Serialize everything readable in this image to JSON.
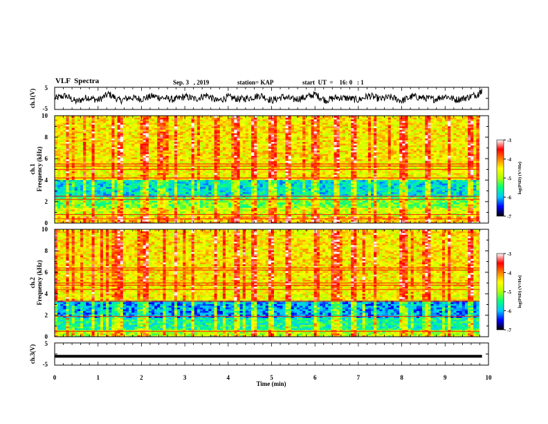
{
  "header": {
    "title": "VLF  Spectra",
    "date": "Sep. 3   , 2019",
    "station": "station= KAP",
    "start": "start  UT  =    16: 0   : 1"
  },
  "chart_data": [
    {
      "type": "line",
      "panel": "ch1-waveform",
      "ylabel": "ch.1(V)",
      "ylim": [
        -5,
        5
      ],
      "yticks": [
        "5",
        "-5"
      ],
      "xlim": [
        0,
        10
      ],
      "series": [
        {
          "x": [
            0,
            0.25,
            0.5,
            0.75,
            1,
            1.25,
            1.5,
            1.75,
            2,
            2.25,
            2.5,
            2.75,
            3,
            3.25,
            3.5,
            3.75,
            4,
            4.25,
            4.5,
            4.75,
            5,
            5.25,
            5.5,
            5.75,
            6,
            6.25,
            6.5,
            6.75,
            7,
            7.25,
            7.5,
            7.75,
            8,
            8.25,
            8.5,
            8.75,
            9,
            9.25,
            9.5,
            9.75,
            9.85
          ],
          "values": [
            0,
            1.2,
            -1.5,
            0.5,
            -0.8,
            2.0,
            -1.0,
            0.4,
            -0.3,
            1.0,
            0.2,
            -0.6,
            0.8,
            -0.3,
            1.5,
            -1.2,
            0.6,
            -0.4,
            0.2,
            1.4,
            -1.0,
            0.7,
            -0.5,
            0.3,
            1.8,
            -0.9,
            0.4,
            0.1,
            -0.7,
            1.2,
            -0.3,
            0.5,
            -1.1,
            0.9,
            0.2,
            -0.4,
            1.1,
            -0.6,
            0.3,
            1.9,
            3.5
          ]
        }
      ]
    },
    {
      "type": "heatmap",
      "panel": "ch1-spectrogram",
      "ylabel": "ch.1",
      "ylabel2": "Frequency  (kHz)",
      "ylim": [
        0,
        10
      ],
      "yticks": [
        "0",
        "2",
        "4",
        "6",
        "8",
        "10"
      ],
      "xlim": [
        0,
        10
      ],
      "data_end_x": 9.85,
      "bands_khz": [
        {
          "lo": 0,
          "hi": 0.6,
          "level": -4.3
        },
        {
          "lo": 0.6,
          "hi": 1.5,
          "level": -4.8
        },
        {
          "lo": 1.5,
          "hi": 2.5,
          "level": -5.2
        },
        {
          "lo": 2.5,
          "hi": 4.0,
          "level": -5.8
        },
        {
          "lo": 4.0,
          "hi": 5.8,
          "level": -4.6
        },
        {
          "lo": 5.8,
          "hi": 10,
          "level": -4.5
        }
      ],
      "lines_khz": [
        0.4,
        0.8,
        2.2,
        2.5,
        4.2,
        5.0,
        5.3,
        5.5
      ],
      "spike_times_min": [
        0.3,
        0.9,
        1.5,
        2.1,
        2.8,
        3.2,
        3.7,
        4.2,
        4.6,
        5.0,
        5.4,
        6.0,
        6.5,
        6.9,
        7.4,
        8.0,
        8.6,
        9.1,
        9.6
      ]
    },
    {
      "type": "heatmap",
      "panel": "ch2-spectrogram",
      "ylabel": "ch.2",
      "ylabel2": "Frequency  (kHz)",
      "ylim": [
        0,
        10
      ],
      "yticks": [
        "0",
        "2",
        "4",
        "6",
        "8",
        "10"
      ],
      "xlim": [
        0,
        10
      ],
      "data_end_x": 9.85,
      "bands_khz": [
        {
          "lo": 0,
          "hi": 0.6,
          "level": -4.9
        },
        {
          "lo": 0.6,
          "hi": 1.8,
          "level": -5.6
        },
        {
          "lo": 1.8,
          "hi": 3.4,
          "level": -6.1
        },
        {
          "lo": 3.4,
          "hi": 4.6,
          "level": -4.6
        },
        {
          "lo": 4.6,
          "hi": 10,
          "level": -4.5
        }
      ],
      "lines_khz": [
        0.5,
        1.9,
        3.3,
        4.4,
        4.8,
        5.0,
        6.2,
        6.4
      ],
      "spike_times_min": [
        0.3,
        0.9,
        1.5,
        2.1,
        2.8,
        3.2,
        3.7,
        4.2,
        4.6,
        5.0,
        5.4,
        6.0,
        6.5,
        6.9,
        7.4,
        8.0,
        8.6,
        9.1,
        9.6
      ]
    },
    {
      "type": "line",
      "panel": "ch3-waveform",
      "ylabel": "ch.3(V)",
      "ylim": [
        -5,
        5
      ],
      "yticks": [
        "5",
        "-5"
      ],
      "xlim": [
        0,
        10
      ],
      "xticks": [
        "0",
        "1",
        "2",
        "3",
        "4",
        "5",
        "6",
        "7",
        "8",
        "9",
        "10"
      ],
      "xlabel": "Time  (min)",
      "series": [
        {
          "x": [
            0,
            9.85
          ],
          "values": [
            -1.0,
            -1.0
          ]
        }
      ]
    }
  ],
  "colorbars": [
    {
      "panel": "ch1",
      "label": "log(PSD) (V²/Hz)",
      "ticks": [
        "-3",
        "-4",
        "-5",
        "-6",
        "-7"
      ],
      "range": [
        -7,
        -3
      ],
      "colors": [
        "#000000",
        "#0000ff",
        "#00c8ff",
        "#00ff80",
        "#b0ff00",
        "#ffff00",
        "#ff8000",
        "#ff0000",
        "#ffffff"
      ]
    },
    {
      "panel": "ch2",
      "label": "log(PSD) (V²/Hz)",
      "ticks": [
        "-3",
        "-4",
        "-5",
        "-6",
        "-7"
      ],
      "range": [
        -7,
        -3
      ],
      "colors": [
        "#000000",
        "#0000ff",
        "#00c8ff",
        "#00ff80",
        "#b0ff00",
        "#ffff00",
        "#ff8000",
        "#ff0000",
        "#ffffff"
      ]
    }
  ]
}
